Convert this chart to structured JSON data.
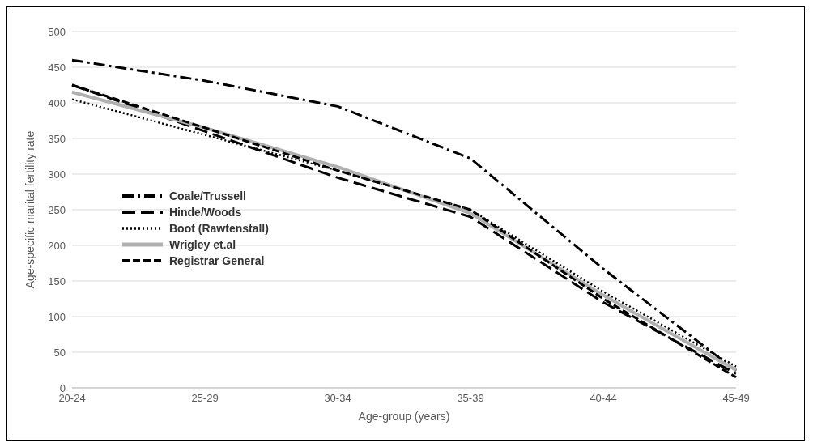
{
  "chart_data": {
    "type": "line",
    "xlabel": "Age-group (years)",
    "ylabel": "Age-specific marital fertility rate",
    "categories": [
      "20-24",
      "25-29",
      "30-34",
      "35-39",
      "40-44",
      "45-49"
    ],
    "ylim": [
      0,
      500
    ],
    "yticks": [
      0,
      50,
      100,
      150,
      200,
      250,
      300,
      350,
      400,
      450,
      500
    ],
    "grid": "y",
    "legend": "left",
    "marker": "none",
    "series": [
      {
        "name": "Coale/Trussell",
        "color": "#000000",
        "line_style": "dashdot",
        "values": [
          460,
          431,
          395,
          322,
          167,
          24
        ]
      },
      {
        "name": "Hinde/Woods",
        "color": "#000000",
        "line_style": "longdash",
        "values": [
          425,
          360,
          295,
          240,
          120,
          20
        ]
      },
      {
        "name": "Boot (Rawtenstall)",
        "color": "#000000",
        "line_style": "dotted",
        "values": [
          405,
          355,
          305,
          250,
          135,
          30
        ]
      },
      {
        "name": "Wrigley et.al",
        "color": "#b0b0b0",
        "line_style": "solid",
        "values": [
          415,
          365,
          310,
          245,
          130,
          25
        ]
      },
      {
        "name": "Registrar General",
        "color": "#000000",
        "line_style": "dashed",
        "values": [
          425,
          365,
          305,
          250,
          125,
          15
        ]
      }
    ]
  }
}
